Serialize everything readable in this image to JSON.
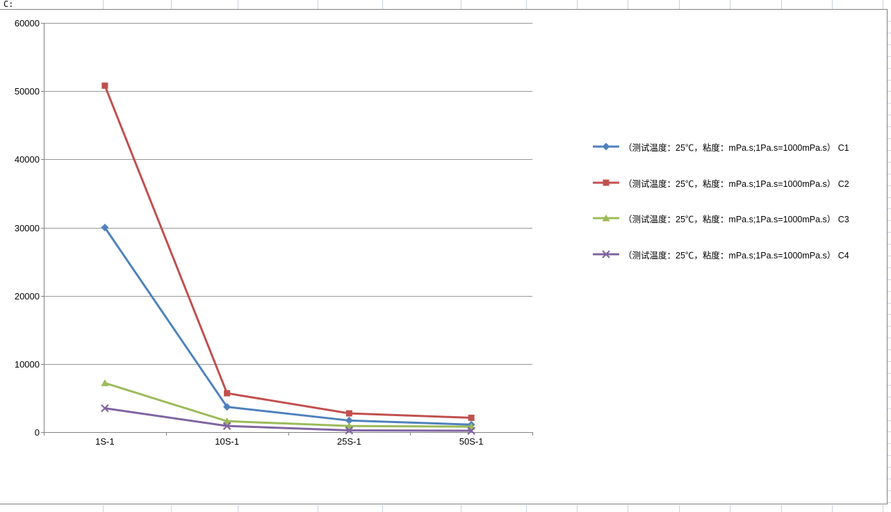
{
  "sheet": {
    "top_left_cell_text": "C:"
  },
  "chart_data": {
    "type": "line",
    "title": "",
    "xlabel": "",
    "ylabel": "",
    "categories": [
      "1S-1",
      "10S-1",
      "25S-1",
      "50S-1"
    ],
    "series": [
      {
        "name": "（测试温度：25℃，粘度：mPa.s;1Pa.s=1000mPa.s） C1",
        "label": "C1",
        "color": "#4F81BD",
        "marker": "diamond",
        "values": [
          30000,
          3700,
          1700,
          1100
        ]
      },
      {
        "name": "（测试温度：25℃，粘度：mPa.s;1Pa.s=1000mPa.s） C2",
        "label": "C2",
        "color": "#C0504D",
        "marker": "square",
        "values": [
          50800,
          5700,
          2750,
          2100
        ]
      },
      {
        "name": "（测试温度：25℃，粘度：mPa.s;1Pa.s=1000mPa.s） C3",
        "label": "C3",
        "color": "#9BBB59",
        "marker": "triangle",
        "values": [
          7200,
          1600,
          900,
          800
        ]
      },
      {
        "name": "（测试温度：25℃，粘度：mPa.s;1Pa.s=1000mPa.s） C4",
        "label": "C4",
        "color": "#8064A2",
        "marker": "x",
        "values": [
          3500,
          900,
          250,
          200
        ]
      }
    ],
    "ylim": [
      0,
      60000
    ],
    "ytick_interval": 10000,
    "yticks": [
      "0",
      "10000",
      "20000",
      "30000",
      "40000",
      "50000",
      "60000"
    ],
    "grid": true,
    "legend_position": "right",
    "axis_color": "#808080",
    "grid_color": "#969696"
  }
}
